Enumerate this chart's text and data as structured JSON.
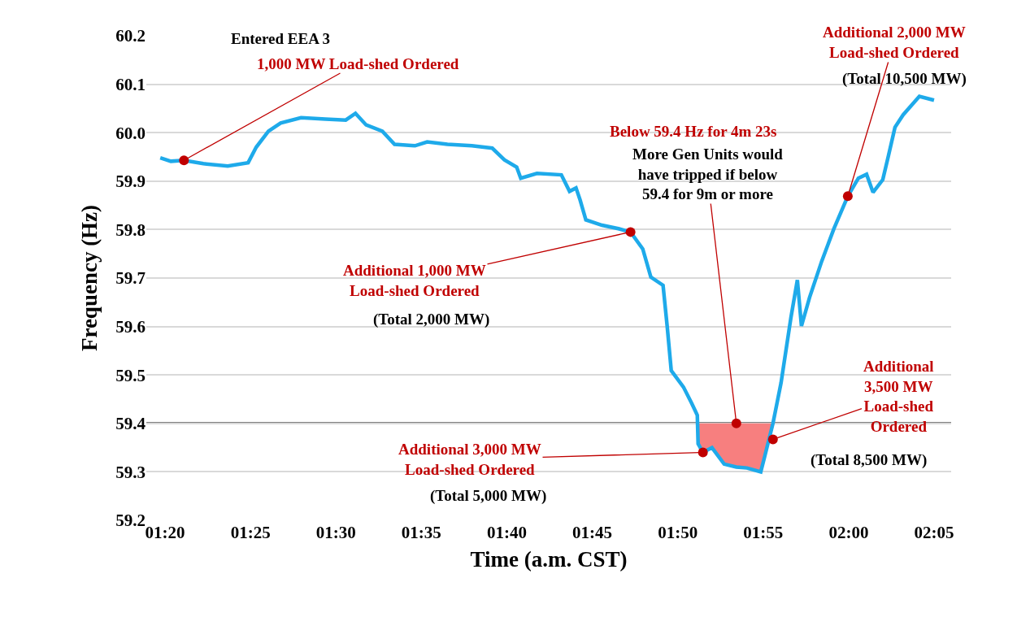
{
  "chart_data": {
    "type": "line",
    "xlabel": "Time (a.m. CST)",
    "ylabel": "Frequency (Hz)",
    "x": [
      1.3286,
      1.3389,
      1.3517,
      1.3706,
      1.3944,
      1.4143,
      1.4222,
      1.4341,
      1.446,
      1.4659,
      1.4897,
      1.5095,
      1.519,
      1.5294,
      1.5452,
      1.5571,
      1.577,
      1.5889,
      1.6087,
      1.6325,
      1.6524,
      1.6643,
      1.6762,
      1.6802,
      1.696,
      1.7198,
      1.7278,
      1.7341,
      1.7381,
      1.7437,
      1.7595,
      1.7754,
      1.7873,
      1.7992,
      1.8071,
      1.819,
      1.823,
      1.827,
      1.8389,
      1.8468,
      1.8524,
      1.8532,
      1.8579,
      1.8667,
      1.8786,
      1.8905,
      1.9008,
      1.9143,
      1.9183,
      1.9262,
      1.9341,
      1.9437,
      1.95,
      1.954,
      1.9619,
      1.9738,
      1.9857,
      1.9992,
      2.0095,
      2.0175,
      2.0238,
      2.0333,
      2.0389,
      2.0452,
      2.0532,
      2.069,
      2.0833
    ],
    "series": [
      {
        "color": "#1eaaea",
        "values": [
          59.948,
          59.941,
          59.943,
          59.936,
          59.931,
          59.938,
          59.97,
          60.003,
          60.02,
          60.031,
          60.028,
          60.026,
          60.04,
          60.016,
          60.003,
          59.976,
          59.973,
          59.981,
          59.976,
          59.973,
          59.968,
          59.944,
          59.929,
          59.906,
          59.916,
          59.913,
          59.879,
          59.886,
          59.861,
          59.82,
          59.809,
          59.802,
          59.795,
          59.76,
          59.702,
          59.685,
          59.601,
          59.509,
          59.475,
          59.442,
          59.417,
          59.358,
          59.34,
          59.35,
          59.316,
          59.31,
          59.308,
          59.3,
          59.333,
          59.4,
          59.484,
          59.618,
          59.696,
          59.601,
          59.66,
          59.735,
          59.802,
          59.869,
          59.906,
          59.914,
          59.877,
          59.903,
          59.953,
          60.011,
          60.037,
          60.075,
          60.067
        ]
      },
      {
        "type": "area",
        "color": "#f77f7f",
        "x": [
          1.8524,
          1.8532,
          1.8579,
          1.8667,
          1.8786,
          1.8905,
          1.9008,
          1.9143,
          1.9183,
          1.9262
        ],
        "values": [
          59.4,
          59.358,
          59.34,
          59.35,
          59.316,
          59.31,
          59.308,
          59.3,
          59.333,
          59.4
        ]
      },
      {
        "type": "scatter",
        "marker": "circle",
        "color": "#c00000",
        "x": [
          1.3517,
          1.7873,
          1.8579,
          1.8905,
          1.9262,
          1.9992
        ],
        "values": [
          59.943,
          59.795,
          59.34,
          59.4,
          59.367,
          59.869
        ]
      }
    ],
    "ref_lines": [
      {
        "axis": "y",
        "value": 59.4,
        "color": "#000000"
      }
    ],
    "xlim": [
      1.315,
      2.1
    ],
    "ylim": [
      59.2,
      60.2
    ],
    "xticks": [
      {
        "value": 1.3333,
        "label": "01:20"
      },
      {
        "value": 1.4167,
        "label": "01:25"
      },
      {
        "value": 1.5,
        "label": "01:30"
      },
      {
        "value": 1.5833,
        "label": "01:35"
      },
      {
        "value": 1.6667,
        "label": "01:40"
      },
      {
        "value": 1.75,
        "label": "01:45"
      },
      {
        "value": 1.8333,
        "label": "01:50"
      },
      {
        "value": 1.9167,
        "label": "01:55"
      },
      {
        "value": 2.0,
        "label": "02:00"
      },
      {
        "value": 2.0833,
        "label": "02:05"
      }
    ],
    "yticks": [
      59.2,
      59.3,
      59.4,
      59.5,
      59.6,
      59.7,
      59.8,
      59.9,
      {
        "value": 60.0,
        "label": "60.0"
      },
      60.1,
      60.2
    ],
    "grid": "y",
    "annotations": [
      "Entered EEA 3",
      {
        "text": "1,000 MW Load-shed Ordered",
        "x": 1.3517,
        "y": 59.943
      },
      {
        "text": "Additional 1,000 MW\nLoad-shed Ordered",
        "x": 1.7873,
        "y": 59.795
      },
      "(Total 2,000 MW)",
      "Below 59.4 Hz for 4m 23s",
      {
        "text": "More Gen Units would\nhave tripped if below\n59.4 for 9m or more",
        "x": 1.8905,
        "y": 59.4
      },
      {
        "text": "Additional 2,000 MW\nLoad-shed Ordered",
        "x": 1.9992,
        "y": 59.869
      },
      "(Total 10,500 MW)",
      {
        "text": "Additional 3,000 MW\nLoad-shed Ordered",
        "x": 1.8579,
        "y": 59.34
      },
      "(Total 5,000 MW)",
      {
        "text": "Additional\n3,500 MW\nLoad-shed\nOrdered",
        "x": 1.9262,
        "y": 59.367
      },
      "(Total 8,500 MW)"
    ]
  }
}
